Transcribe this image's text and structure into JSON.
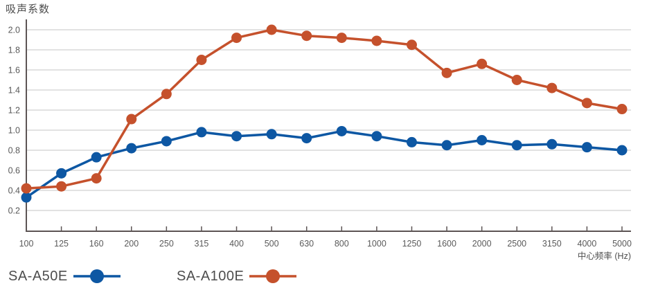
{
  "title": "吸声系数",
  "colors": {
    "grid": "#d9d9d9",
    "axis": "#5c5454",
    "tick_text": "#595959",
    "label_text": "#4d4d4d",
    "series1": "#0d57a3",
    "series2": "#c5512c"
  },
  "chart_data": {
    "type": "line",
    "title": "吸声系数",
    "xlabel": "中心频率 (Hz)",
    "ylabel": "吸声系数",
    "categories": [
      "100",
      "125",
      "160",
      "200",
      "250",
      "315",
      "400",
      "500",
      "630",
      "800",
      "1000",
      "1250",
      "1600",
      "2000",
      "2500",
      "3150",
      "4000",
      "5000"
    ],
    "series": [
      {
        "name": "SA-A50E",
        "color": "#0d57a3",
        "values": [
          0.33,
          0.57,
          0.73,
          0.82,
          0.89,
          0.98,
          0.94,
          0.96,
          0.92,
          0.99,
          0.94,
          0.88,
          0.85,
          0.9,
          0.85,
          0.86,
          0.83,
          0.8
        ]
      },
      {
        "name": "SA-A100E",
        "color": "#c5512c",
        "values": [
          0.42,
          0.44,
          0.52,
          1.11,
          1.36,
          1.7,
          1.92,
          2.0,
          1.94,
          1.92,
          1.89,
          1.85,
          1.57,
          1.66,
          1.5,
          1.42,
          1.27,
          1.21
        ]
      }
    ],
    "yticks": [
      0.2,
      0.4,
      0.6,
      0.8,
      1.0,
      1.2,
      1.4,
      1.6,
      1.8,
      2.0
    ],
    "ylim": [
      0,
      2.1
    ],
    "grid": true,
    "legend_position": "bottom-left"
  }
}
